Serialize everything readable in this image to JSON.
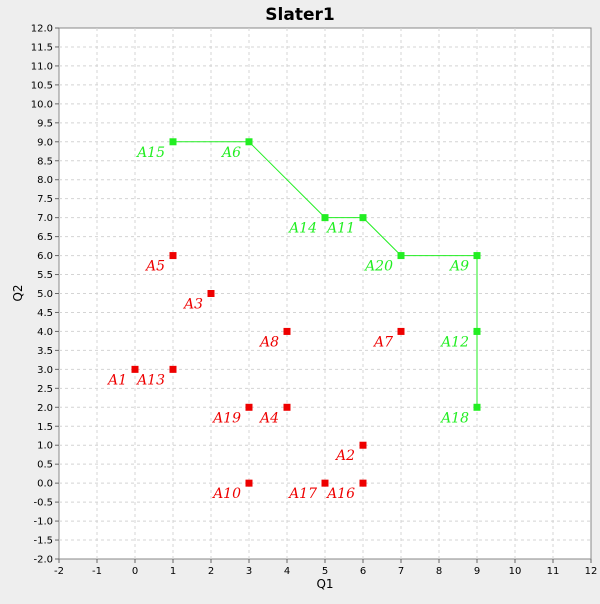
{
  "chart_data": {
    "type": "scatter",
    "title": "Slater1",
    "xlabel": "Q1",
    "ylabel": "Q2",
    "xlim": [
      -2,
      12
    ],
    "ylim": [
      -2,
      12
    ],
    "x_ticks": [
      "-2",
      "-1",
      "0",
      "1",
      "2",
      "3",
      "4",
      "5",
      "6",
      "7",
      "8",
      "9",
      "10",
      "11",
      "12"
    ],
    "y_ticks": [
      "-2.0",
      "-1.5",
      "-1.0",
      "-0.5",
      "0.0",
      "0.5",
      "1.0",
      "1.5",
      "2.0",
      "2.5",
      "3.0",
      "3.5",
      "4.0",
      "4.5",
      "5.0",
      "5.5",
      "6.0",
      "6.5",
      "7.0",
      "7.5",
      "8.0",
      "8.5",
      "9.0",
      "9.5",
      "10.0",
      "10.5",
      "11.0",
      "11.5",
      "12.0"
    ],
    "grid": true,
    "series": [
      {
        "color": "#ee0000",
        "connected": false,
        "points": [
          {
            "label": "A1",
            "x": 0,
            "y": 3
          },
          {
            "label": "A13",
            "x": 1,
            "y": 3
          },
          {
            "label": "A5",
            "x": 1,
            "y": 6
          },
          {
            "label": "A3",
            "x": 2,
            "y": 5
          },
          {
            "label": "A8",
            "x": 4,
            "y": 4
          },
          {
            "label": "A7",
            "x": 7,
            "y": 4
          },
          {
            "label": "A19",
            "x": 3,
            "y": 2
          },
          {
            "label": "A4",
            "x": 4,
            "y": 2
          },
          {
            "label": "A2",
            "x": 6,
            "y": 1
          },
          {
            "label": "A10",
            "x": 3,
            "y": 0
          },
          {
            "label": "A17",
            "x": 5,
            "y": 0
          },
          {
            "label": "A16",
            "x": 6,
            "y": 0
          }
        ]
      },
      {
        "color": "#22ee22",
        "connected": true,
        "points": [
          {
            "label": "A15",
            "x": 1,
            "y": 9
          },
          {
            "label": "A6",
            "x": 3,
            "y": 9
          },
          {
            "label": "A14",
            "x": 5,
            "y": 7
          },
          {
            "label": "A11",
            "x": 6,
            "y": 7
          },
          {
            "label": "A20",
            "x": 7,
            "y": 6
          },
          {
            "label": "A9",
            "x": 9,
            "y": 6
          },
          {
            "label": "A12",
            "x": 9,
            "y": 4
          },
          {
            "label": "A18",
            "x": 9,
            "y": 2
          }
        ]
      }
    ]
  }
}
